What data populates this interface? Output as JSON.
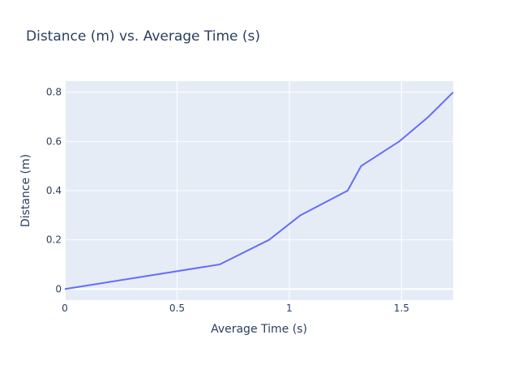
{
  "chart_data": {
    "type": "line",
    "title": "Distance (m) vs. Average Time (s)",
    "xlabel": "Average Time (s)",
    "ylabel": "Distance (m)",
    "xlim": [
      0,
      1.73
    ],
    "ylim": [
      -0.045,
      0.845
    ],
    "xticks": [
      0,
      0.5,
      1,
      1.5
    ],
    "xtick_labels": [
      "0",
      "0.5",
      "1",
      "1.5"
    ],
    "yticks": [
      0,
      0.2,
      0.4,
      0.6,
      0.8
    ],
    "ytick_labels": [
      "0",
      "0.2",
      "0.4",
      "0.6",
      "0.8"
    ],
    "grid": true,
    "background_color": "#e5ecf6",
    "grid_color": "#ffffff",
    "line_color": "#636efa",
    "text_color": "#2a3f5f",
    "series": [
      {
        "x": [
          0,
          0.69,
          0.91,
          1.05,
          1.26,
          1.32,
          1.49,
          1.62,
          1.73
        ],
        "y": [
          0,
          0.1,
          0.2,
          0.3,
          0.4,
          0.5,
          0.6,
          0.7,
          0.8
        ]
      }
    ]
  }
}
